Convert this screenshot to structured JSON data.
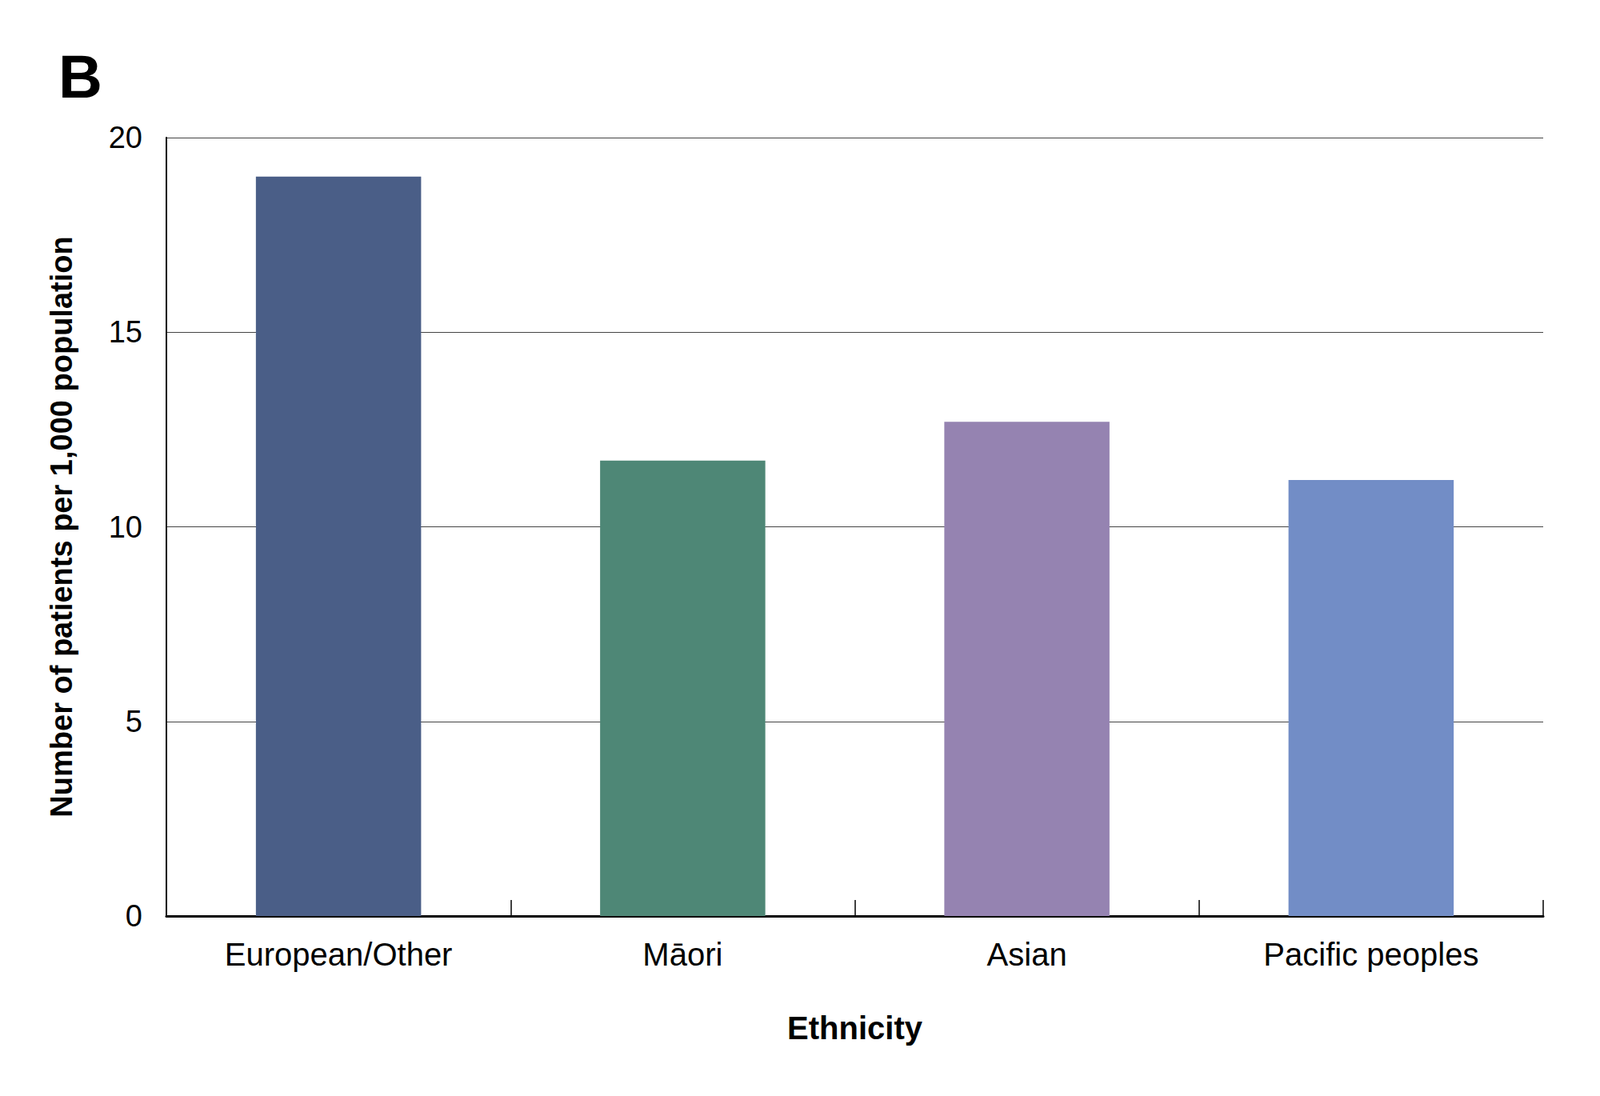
{
  "chart_data": {
    "type": "bar",
    "title": "B",
    "x_label": "Ethnicity",
    "y_label": "Number of patients per 1,000 population",
    "categories": [
      "European/Other",
      "Māori",
      "Asian",
      "Pacific peoples"
    ],
    "values": [
      19.0,
      11.7,
      12.7,
      11.2
    ],
    "colors": [
      "#4a5e87",
      "#4e8776",
      "#9583b1",
      "#728dc6"
    ],
    "ylim": [
      0,
      20
    ],
    "yticks": [
      0,
      5,
      10,
      15,
      20
    ],
    "grid": true
  }
}
